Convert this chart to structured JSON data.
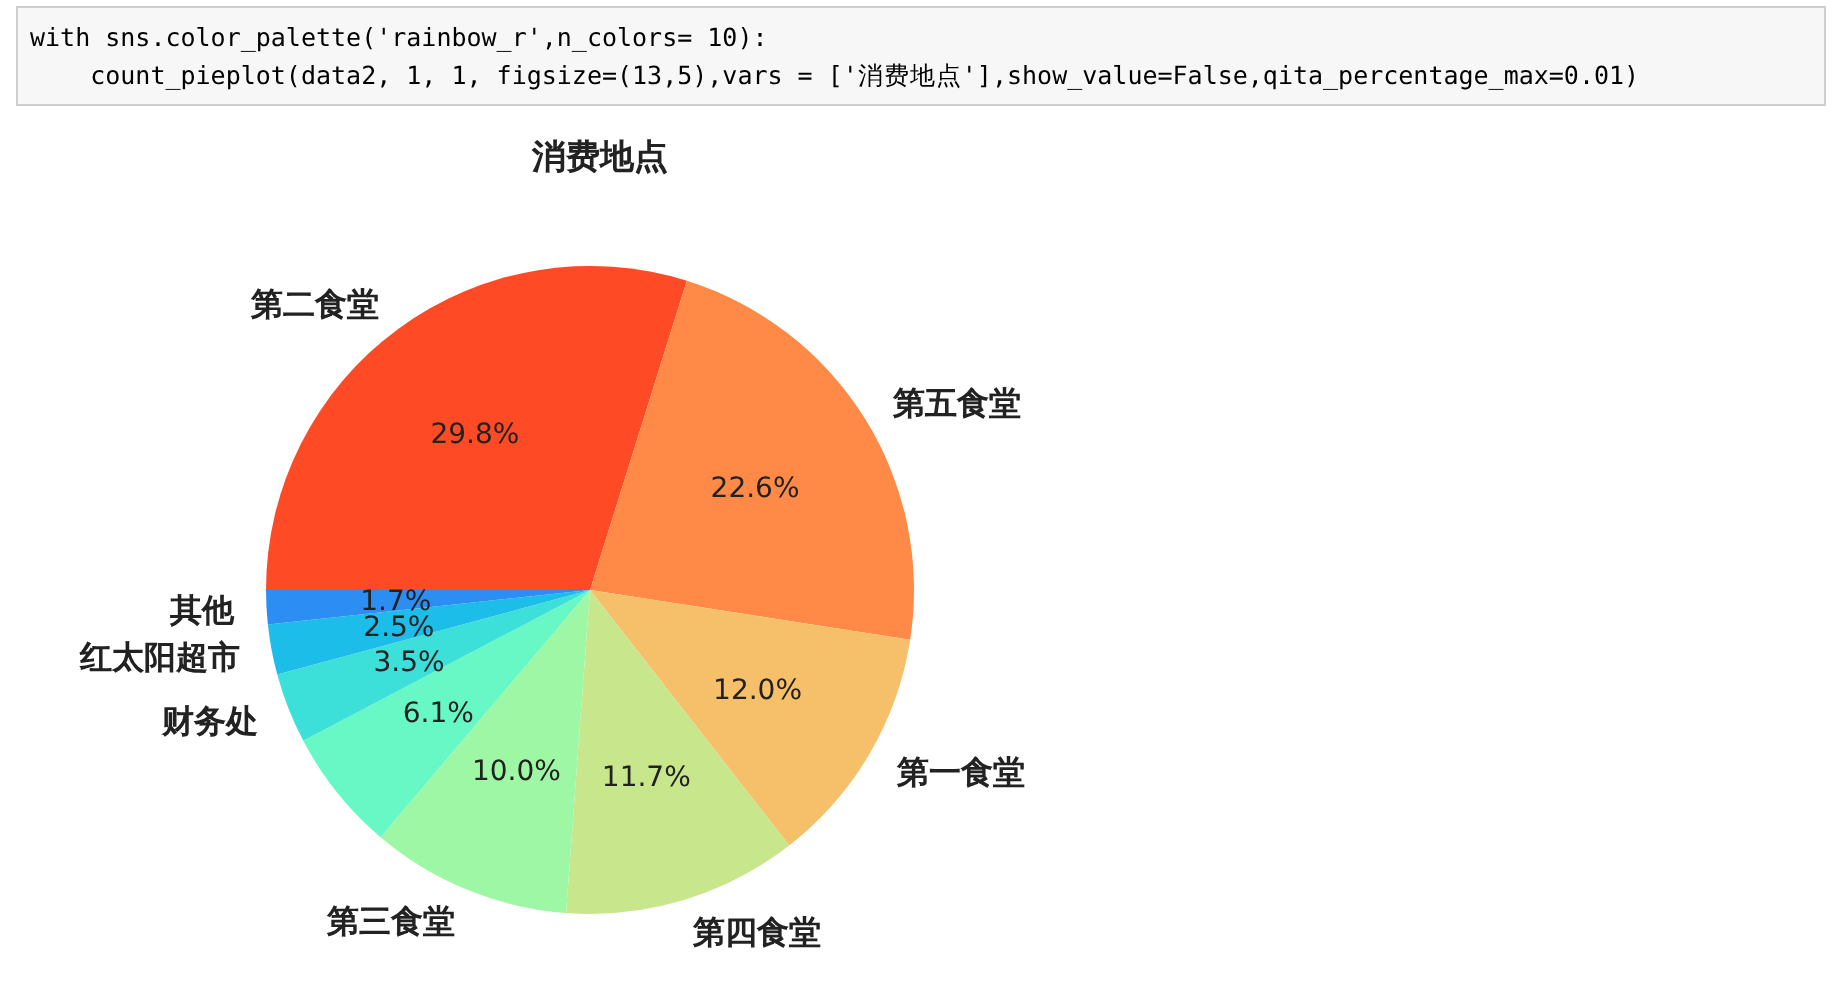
{
  "chart_data": {
    "type": "pie",
    "title": "消费地点",
    "categories": [
      "第二食堂",
      "第五食堂",
      "第一食堂",
      "第四食堂",
      "第三食堂",
      null,
      "财务处",
      "红太阳超市",
      "其他"
    ],
    "values": [
      29.8,
      22.6,
      12.0,
      11.7,
      10.0,
      6.1,
      3.5,
      2.5,
      1.7
    ],
    "value_labels": [
      "29.8%",
      "22.6%",
      "12.0%",
      "11.7%",
      "10.0%",
      "6.1%",
      "3.5%",
      "2.5%",
      "1.7%"
    ],
    "colors": [
      "#ff4b25",
      "#ff8a47",
      "#f6c06b",
      "#c8e68b",
      "#9ef7a4",
      "#68f8c6",
      "#3ce0d8",
      "#1dbde9",
      "#2c8ef3"
    ],
    "annotations": [
      "with sns.color_palette('rainbow_r',n_colors= 10):",
      "    count_pieplot(data2, 1, 1, figsize=(13,5),vars = ['消费地点'],show_value=False,qita_percentage_max=0.01)"
    ]
  }
}
